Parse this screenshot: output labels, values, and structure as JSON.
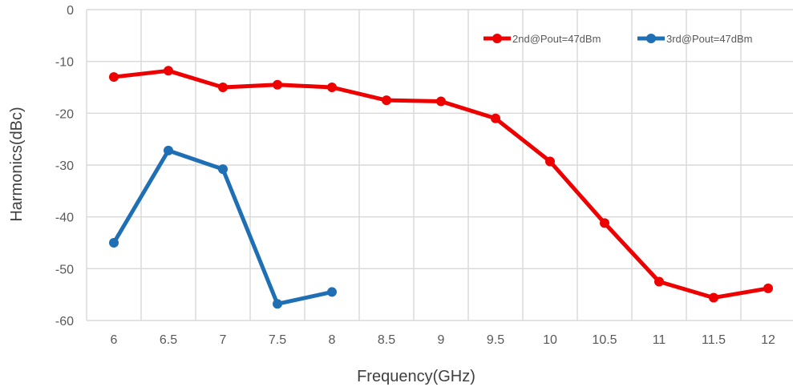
{
  "chart_data": {
    "type": "line",
    "title": "",
    "xlabel": "Frequency(GHz)",
    "ylabel": "Harmonics(dBc)",
    "categories": [
      "6",
      "6.5",
      "7",
      "7.5",
      "8",
      "8.5",
      "9",
      "9.5",
      "10",
      "10.5",
      "11",
      "11.5",
      "12"
    ],
    "yticks": [
      "0",
      "-10",
      "-20",
      "-30",
      "-40",
      "-50",
      "-60"
    ],
    "ylim": [
      -60,
      0
    ],
    "grid": true,
    "legend_position": "top-right",
    "series": [
      {
        "name": "2nd@Pout=47dBm",
        "color": "#ee0000",
        "values": [
          -13,
          -11.8,
          -15,
          -14.5,
          -15,
          -17.5,
          -17.7,
          -21,
          -29.3,
          -41.2,
          -52.5,
          -55.6,
          -53.8
        ]
      },
      {
        "name": "3rd@Pout=47dBm",
        "color": "#1f6fb4",
        "values": [
          -45,
          -27.2,
          -30.8,
          -56.8,
          -54.5,
          null,
          null,
          null,
          null,
          null,
          null,
          null,
          null
        ]
      }
    ]
  }
}
